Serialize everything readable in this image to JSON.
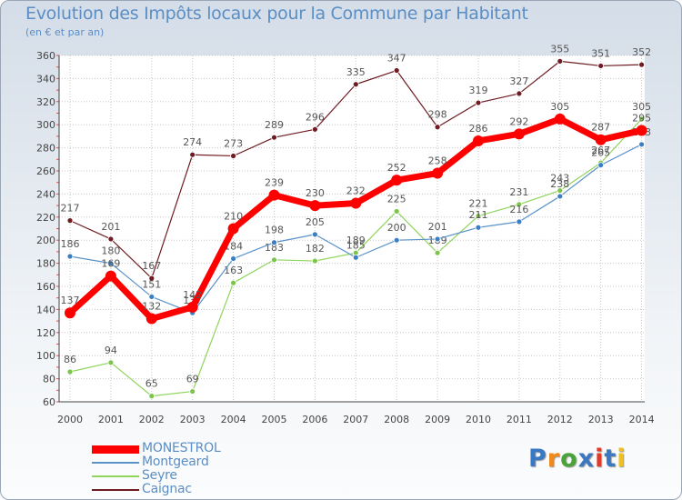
{
  "chart_data": {
    "type": "line",
    "title": "Evolution des Impôts locaux pour la Commune par Habitant",
    "subtitle": "(en € et par an)",
    "x": [
      "2000",
      "2001",
      "2002",
      "2003",
      "2004",
      "2005",
      "2006",
      "2007",
      "2008",
      "2009",
      "2010",
      "2011",
      "2012",
      "2013",
      "2014"
    ],
    "ylim": [
      60,
      360
    ],
    "yticks": [
      "60",
      "80",
      "100",
      "120",
      "140",
      "160",
      "180",
      "200",
      "220",
      "240",
      "260",
      "280",
      "300",
      "320",
      "340",
      "360"
    ],
    "grid": true,
    "legend_position": "bottom-left",
    "series": [
      {
        "name": "Caignac",
        "color": "#6e1c22",
        "values": [
          217,
          201,
          167,
          274,
          273,
          289,
          296,
          335,
          347,
          298,
          319,
          327,
          355,
          351,
          352
        ]
      },
      {
        "name": "Seyre",
        "color": "#8fd45c",
        "values": [
          86,
          94,
          65,
          69,
          163,
          183,
          182,
          189,
          225,
          189,
          221,
          231,
          243,
          267,
          305
        ]
      },
      {
        "name": "Montgeard",
        "color": "#5a92c8",
        "values": [
          186,
          180,
          151,
          137,
          184,
          198,
          205,
          185,
          200,
          201,
          211,
          216,
          238,
          265,
          283
        ]
      },
      {
        "name": "MONESTROL",
        "color": "#ff0000",
        "values": [
          137,
          169,
          132,
          142,
          210,
          239,
          230,
          232,
          252,
          258,
          286,
          292,
          305,
          287,
          295
        ]
      }
    ],
    "legend_order": [
      "MONESTROL",
      "Montgeard",
      "Seyre",
      "Caignac"
    ]
  },
  "brand": {
    "letters": [
      "P",
      "r",
      "o",
      "x",
      "i",
      "t",
      "i"
    ],
    "colors": [
      "#3a78c3",
      "#f08a1c",
      "#4aa23a",
      "#3a78c3",
      "#e03a2a",
      "#3a78c3",
      "#f0c020"
    ]
  }
}
